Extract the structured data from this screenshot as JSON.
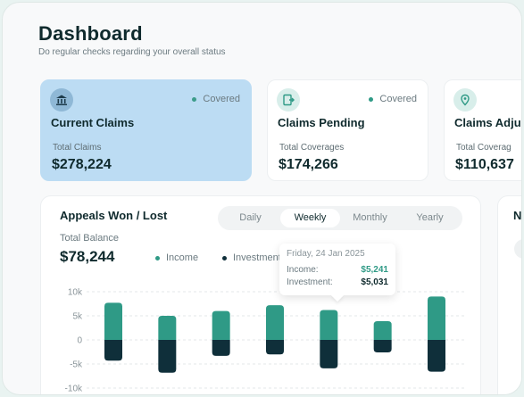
{
  "header": {
    "title": "Dashboard",
    "subtitle": "Do regular checks regarding your overall status"
  },
  "cards": [
    {
      "title": "Current Claims",
      "status": "Covered",
      "label": "Total Claims",
      "value": "$278,224",
      "icon": "bank-icon",
      "active": true
    },
    {
      "title": "Claims Pending",
      "status": "Covered",
      "label": "Total Coverages",
      "value": "$174,266",
      "icon": "document-arrow-icon",
      "active": false
    },
    {
      "title": "Claims Adju",
      "status": "",
      "label": "Total Coverag",
      "value": "$110,637",
      "icon": "shield-location-icon",
      "active": false
    }
  ],
  "appeals": {
    "title": "Appeals Won / Lost",
    "tabs": [
      "Daily",
      "Weekly",
      "Monthly",
      "Yearly"
    ],
    "active_tab": "Weekly",
    "balance_label": "Total Balance",
    "balance_value": "$78,244",
    "legend": {
      "income": "Income",
      "investment": "Investment"
    }
  },
  "tooltip": {
    "date": "Friday, 24 Jan 2025",
    "income_label": "Income:",
    "income_value": "$5,241",
    "investment_label": "Investment:",
    "investment_value": "$5,031"
  },
  "side_panel": {
    "letter": "N"
  },
  "colors": {
    "income": "#2f9a86",
    "investment": "#0f2f3a",
    "active_card": "#bcdcf3",
    "text_dark": "#0f2a2d"
  },
  "chart_data": {
    "type": "bar",
    "y_ticks": [
      "10k",
      "5k",
      "0",
      "-5k",
      "-10k"
    ],
    "ylim": [
      -10000,
      10000
    ],
    "series": [
      {
        "name": "Income",
        "values": [
          7700,
          5000,
          6000,
          7200,
          6200,
          3900,
          9000
        ]
      },
      {
        "name": "Investment",
        "values": [
          -4300,
          -6800,
          -3300,
          -3000,
          -5900,
          -2600,
          -6600
        ]
      }
    ]
  }
}
